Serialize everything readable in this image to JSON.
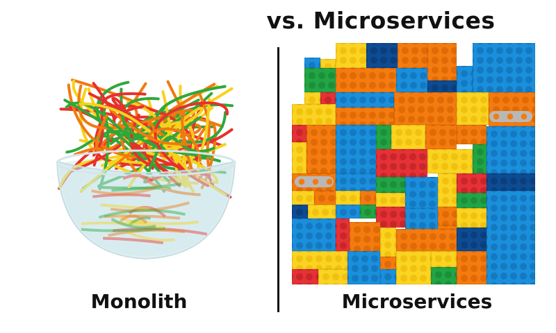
{
  "header": {
    "title": "vs. Microservices"
  },
  "left_panel": {
    "label": "Monolith",
    "image": "spaghetti-bowl-illustration",
    "noodle_colors": [
      "#e8302c",
      "#f07a12",
      "#f7d21c",
      "#2fa83a"
    ]
  },
  "right_panel": {
    "label": "Microservices",
    "image": "lego-brick-wall-illustration"
  },
  "colors": {
    "red": "#e53236",
    "orange": "#f47b0f",
    "yellow": "#fbd321",
    "green": "#22a545",
    "blue": "#1a8fdc",
    "navy": "#0d4b93",
    "gray": "#b8b8b8"
  }
}
